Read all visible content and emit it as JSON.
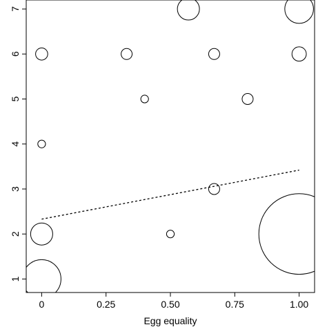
{
  "chart_data": {
    "type": "scatter",
    "title": "",
    "xlabel": "Egg equality",
    "ylabel": "",
    "xlim": [
      -0.06,
      1.06
    ],
    "ylim": [
      0.7,
      7.2
    ],
    "x_ticks": [
      0,
      0.25,
      0.5,
      0.75,
      1.0
    ],
    "x_tick_labels": [
      "0",
      "0.25",
      "0.50",
      "0.75",
      "1.00"
    ],
    "y_ticks": [
      1,
      2,
      3,
      4,
      5,
      6,
      7
    ],
    "y_tick_labels": [
      "1",
      "2",
      "3",
      "4",
      "5",
      "6",
      "7"
    ],
    "grid": false,
    "marker": "open circle, size proportional to weight",
    "points": [
      {
        "x": 0.0,
        "y": 1,
        "size": 3.5
      },
      {
        "x": 0.0,
        "y": 2,
        "size": 2.0
      },
      {
        "x": 0.0,
        "y": 4,
        "size": 0.7
      },
      {
        "x": 0.0,
        "y": 6,
        "size": 1.1
      },
      {
        "x": 0.33,
        "y": 6,
        "size": 1.0
      },
      {
        "x": 0.4,
        "y": 5,
        "size": 0.7
      },
      {
        "x": 0.5,
        "y": 2,
        "size": 0.7
      },
      {
        "x": 0.57,
        "y": 7,
        "size": 2.0
      },
      {
        "x": 0.67,
        "y": 6,
        "size": 1.0
      },
      {
        "x": 0.67,
        "y": 3,
        "size": 1.0
      },
      {
        "x": 0.8,
        "y": 5,
        "size": 1.0
      },
      {
        "x": 1.0,
        "y": 7,
        "size": 2.6
      },
      {
        "x": 1.0,
        "y": 6,
        "size": 1.3
      },
      {
        "x": 1.0,
        "y": 2,
        "size": 7.3
      }
    ],
    "fit_line": {
      "style": "dashed",
      "x": [
        0.0,
        1.0
      ],
      "y": [
        2.33,
        3.42
      ]
    },
    "colors": {
      "stroke": "#000000",
      "background": "#ffffff"
    }
  }
}
